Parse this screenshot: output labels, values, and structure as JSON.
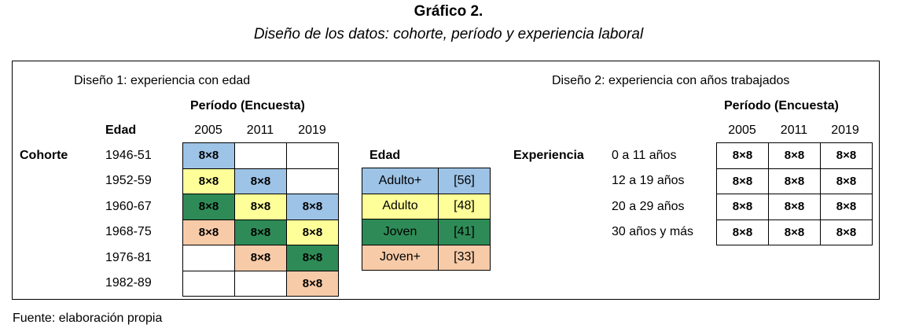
{
  "title": "Gráfico 2.",
  "subtitle": "Diseño de los datos: cohorte, período y experiencia laboral",
  "colors": {
    "blue": "#9dc3e6",
    "yellow": "#ffff99",
    "green": "#2e8b57",
    "orange": "#f8cba8",
    "white": "#ffffff"
  },
  "design1": {
    "heading": "Diseño 1: experiencia con edad",
    "period_label": "Período (Encuesta)",
    "row_header": "Edad",
    "group_label": "Cohorte",
    "years": [
      "2005",
      "2011",
      "2019"
    ],
    "rows": [
      {
        "label": "1946-51",
        "cells": [
          {
            "text": "8×8",
            "color": "blue"
          },
          {
            "text": "",
            "color": "white"
          },
          {
            "text": "",
            "color": "white"
          }
        ]
      },
      {
        "label": "1952-59",
        "cells": [
          {
            "text": "8×8",
            "color": "yellow"
          },
          {
            "text": "8×8",
            "color": "blue"
          },
          {
            "text": "",
            "color": "white"
          }
        ]
      },
      {
        "label": "1960-67",
        "cells": [
          {
            "text": "8×8",
            "color": "green"
          },
          {
            "text": "8×8",
            "color": "yellow"
          },
          {
            "text": "8×8",
            "color": "blue"
          }
        ]
      },
      {
        "label": "1968-75",
        "cells": [
          {
            "text": "8×8",
            "color": "orange"
          },
          {
            "text": "8×8",
            "color": "green"
          },
          {
            "text": "8×8",
            "color": "yellow"
          }
        ]
      },
      {
        "label": "1976-81",
        "cells": [
          {
            "text": "",
            "color": "white"
          },
          {
            "text": "8×8",
            "color": "orange"
          },
          {
            "text": "8×8",
            "color": "green"
          }
        ]
      },
      {
        "label": "1982-89",
        "cells": [
          {
            "text": "",
            "color": "white"
          },
          {
            "text": "",
            "color": "white"
          },
          {
            "text": "8×8",
            "color": "orange"
          }
        ]
      }
    ]
  },
  "legend": {
    "heading": "Edad",
    "items": [
      {
        "name": "Adulto+",
        "value": "[56]",
        "color": "blue"
      },
      {
        "name": "Adulto",
        "value": "[48]",
        "color": "yellow"
      },
      {
        "name": "Joven",
        "value": "[41]",
        "color": "green"
      },
      {
        "name": "Joven+",
        "value": "[33]",
        "color": "orange"
      }
    ]
  },
  "design2": {
    "heading": "Diseño 2: experiencia con años trabajados",
    "period_label": "Período (Encuesta)",
    "group_label": "Experiencia",
    "years": [
      "2005",
      "2011",
      "2019"
    ],
    "rows": [
      {
        "label": "0 a 11 años",
        "cells": [
          "8×8",
          "8×8",
          "8×8"
        ]
      },
      {
        "label": "12 a 19 años",
        "cells": [
          "8×8",
          "8×8",
          "8×8"
        ]
      },
      {
        "label": "20 a 29 años",
        "cells": [
          "8×8",
          "8×8",
          "8×8"
        ]
      },
      {
        "label": "30 años y más",
        "cells": [
          "8×8",
          "8×8",
          "8×8"
        ]
      }
    ]
  },
  "source": "Fuente: elaboración propia"
}
